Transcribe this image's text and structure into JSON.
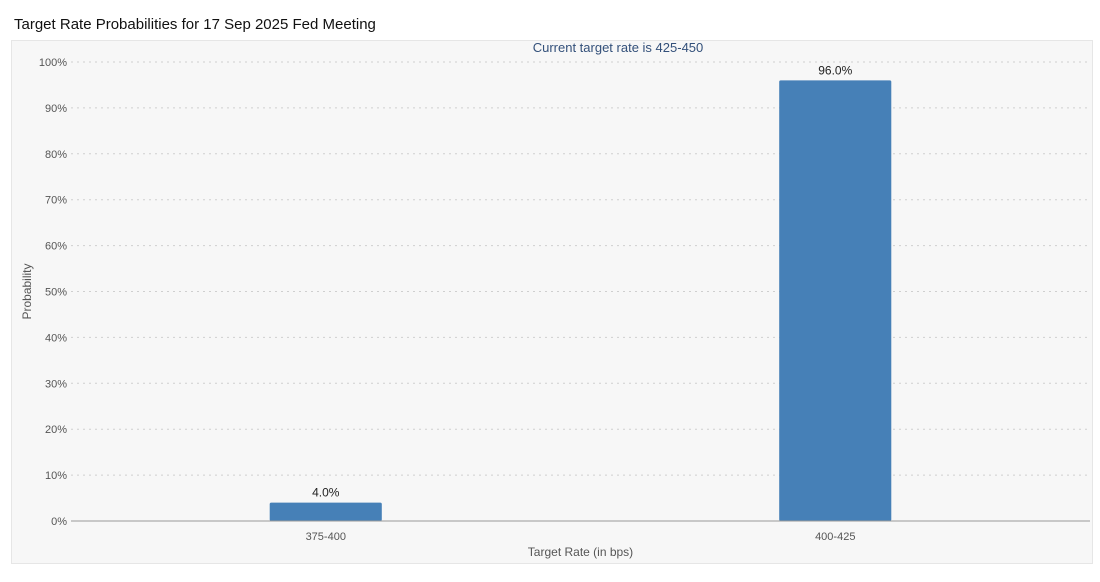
{
  "page": {
    "title": "Target Rate Probabilities for 17 Sep 2025 Fed Meeting"
  },
  "chart_data": {
    "type": "bar",
    "title": "Target Rate Probabilities for 17 Sep 2025 Fed Meeting",
    "subtitle": "Current target rate is 425-450",
    "xlabel": "Target Rate (in bps)",
    "ylabel": "Probability",
    "categories": [
      "375-400",
      "400-425"
    ],
    "values": [
      4.0,
      96.0
    ],
    "data_labels": [
      "4.0%",
      "96.0%"
    ],
    "ylim": [
      0,
      100
    ],
    "yticks": [
      0,
      10,
      20,
      30,
      40,
      50,
      60,
      70,
      80,
      90,
      100
    ],
    "ytick_labels": [
      "0%",
      "10%",
      "20%",
      "30%",
      "40%",
      "50%",
      "60%",
      "70%",
      "80%",
      "90%",
      "100%"
    ],
    "grid": true,
    "bar_color": "#4680b7",
    "legend": "none"
  }
}
